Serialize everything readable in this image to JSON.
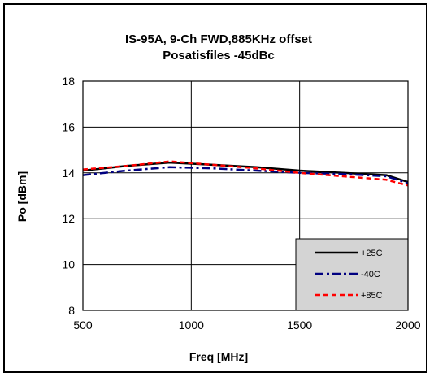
{
  "chart_data": {
    "type": "line",
    "title": "IS-95A, 9-Ch FWD,885KHz offset",
    "subtitle": "Posatisfiles -45dBc",
    "xlabel": "Freq [MHz]",
    "ylabel": "Po [dBm]",
    "xlim": [
      500,
      2000
    ],
    "ylim": [
      8,
      18
    ],
    "xticks": [
      500,
      1000,
      1500,
      2000
    ],
    "yticks": [
      8,
      10,
      12,
      14,
      16,
      18
    ],
    "grid": true,
    "legend_position": "bottom-right",
    "series": [
      {
        "name": "+25C",
        "color": "#000000",
        "style": "solid",
        "x": [
          500,
          700,
          900,
          1100,
          1300,
          1500,
          1700,
          1900,
          2000
        ],
        "y": [
          14.1,
          14.3,
          14.45,
          14.35,
          14.25,
          14.1,
          14.0,
          13.9,
          13.6
        ]
      },
      {
        "name": "-40C",
        "color": "#000080",
        "style": "dashdot",
        "x": [
          500,
          700,
          900,
          1100,
          1300,
          1500,
          1700,
          1900,
          2000
        ],
        "y": [
          13.9,
          14.1,
          14.25,
          14.2,
          14.1,
          14.0,
          13.95,
          13.85,
          13.55
        ]
      },
      {
        "name": "+85C",
        "color": "#ff0000",
        "style": "dashed",
        "x": [
          500,
          700,
          900,
          1100,
          1300,
          1500,
          1700,
          1900,
          2000
        ],
        "y": [
          14.15,
          14.3,
          14.5,
          14.35,
          14.2,
          14.0,
          13.85,
          13.7,
          13.45
        ]
      }
    ]
  }
}
